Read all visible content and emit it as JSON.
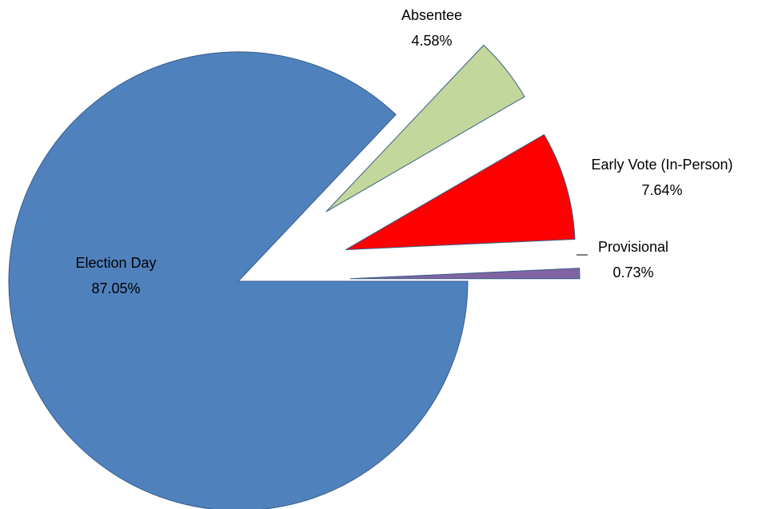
{
  "chart_data": {
    "type": "pie",
    "categories": [
      "Election Day",
      "Absentee",
      "Early Vote (In-Person)",
      "Provisional"
    ],
    "values": [
      87.05,
      4.58,
      7.64,
      0.73
    ],
    "value_labels": [
      "87.05%",
      "4.58%",
      "7.64%",
      "0.73%"
    ],
    "colors": [
      "#4f81bd",
      "#c3d69b",
      "#ff0000",
      "#8064a2"
    ]
  }
}
